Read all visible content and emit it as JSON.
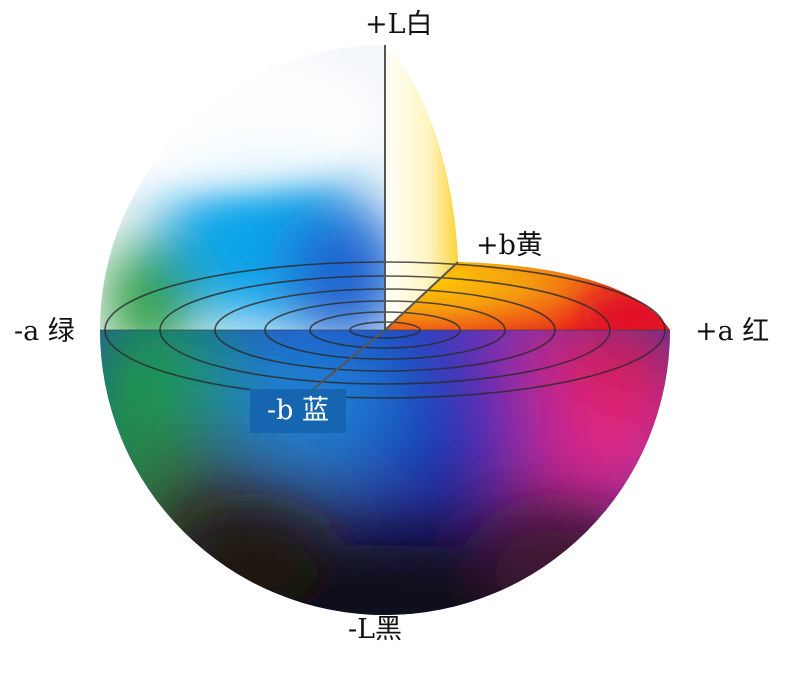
{
  "labels": {
    "top": "+L白",
    "bottom": "-L黑",
    "left": "-a 绿",
    "right": "+a 红",
    "yellow": "+b黄",
    "blue": "-b 蓝"
  },
  "colors": {
    "blue_label_bg": "#1565b0",
    "red": "#e4142a",
    "magenta": "#e2248f",
    "yellow": "#f8d000",
    "blue": "#1b37c0",
    "cyan": "#12a8ea",
    "green": "#208a3c",
    "black": "#0e0a18"
  }
}
